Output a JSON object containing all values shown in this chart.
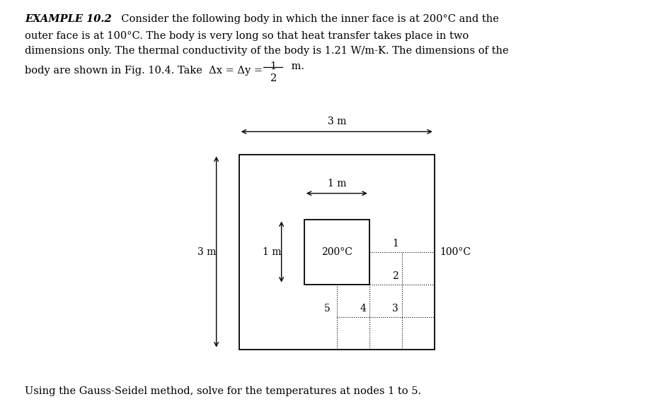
{
  "bg_color": "#ffffff",
  "text_color": "#000000",
  "line1_bold": "EXAMPLE 10.2",
  "line1_rest": "  Consider the following body in which the inner face is at 200°C and the",
  "line2": "outer face is at 100°C. The body is very long so that heat transfer takes place in two",
  "line3": "dimensions only. The thermal conductivity of the body is 1.21 W/m-K. The dimensions of the",
  "line4_pre": "body are shown in Fig. 10.4. Take  Δx = Δy = ",
  "line4_post": " m.",
  "footer": "Using the Gauss-Seidel method, solve for the temperatures at nodes 1 to 5.",
  "temp_inner": "200°C",
  "temp_outer": "100°C",
  "dim_3m": "3 m",
  "dim_1m_h": "1 m",
  "dim_1m_v": "1 m",
  "dim_3m_v": "3 m",
  "fontsize_text": 10.5,
  "fontsize_diag": 10
}
